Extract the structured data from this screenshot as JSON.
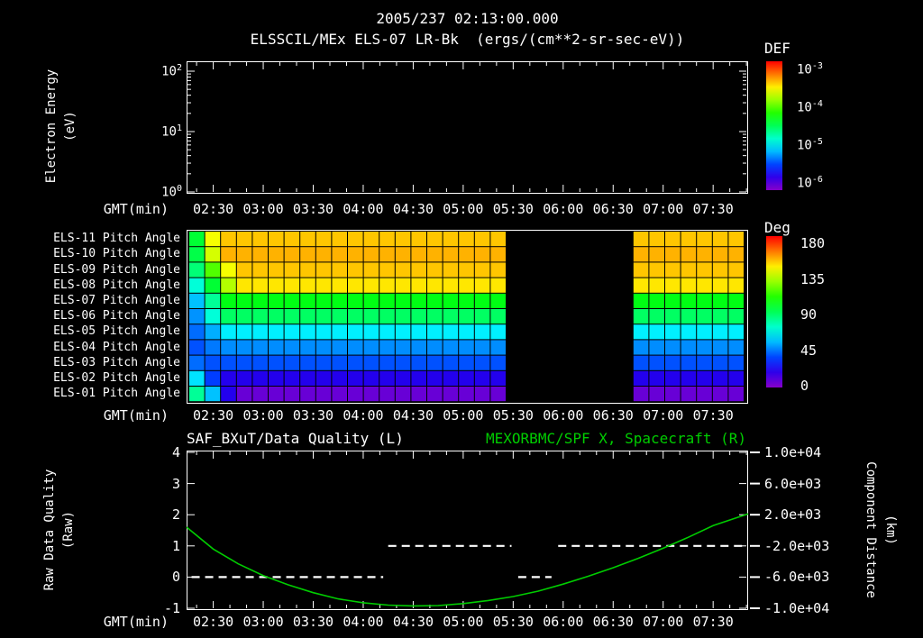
{
  "colors": {
    "background": "#000000",
    "text": "#ffffff",
    "green": "#00cd00"
  },
  "header": {
    "title": "2005/237 02:13:00.000",
    "subtitle": "ELSSCIL/MEx ELS-07 LR-Bk  (ergs/(cm**2-sr-sec-eV))"
  },
  "time_axis": {
    "label": "GMT(min)",
    "ticks": [
      "02:30",
      "03:00",
      "03:30",
      "04:00",
      "04:30",
      "05:00",
      "05:30",
      "06:00",
      "06:30",
      "07:00",
      "07:30"
    ],
    "start": "02:14",
    "end": "07:51"
  },
  "spectrogram_panel": {
    "ylabel": [
      "Electron Energy",
      "(eV)"
    ],
    "yticks": [
      {
        "m": "10",
        "e": "2"
      },
      {
        "m": "10",
        "e": "1"
      },
      {
        "m": "10",
        "e": "0"
      }
    ],
    "colorbar": {
      "title": "DEF",
      "ticks": [
        {
          "m": "10",
          "e": "-3"
        },
        {
          "m": "10",
          "e": "-4"
        },
        {
          "m": "10",
          "e": "-5"
        },
        {
          "m": "10",
          "e": "-6"
        }
      ]
    }
  },
  "pitch_panel": {
    "colorbar": {
      "title": "Deg",
      "ticks": [
        "180",
        "135",
        "90",
        "45",
        "0"
      ]
    }
  },
  "bottom_panel": {
    "title_left": "SAF_BXuT/Data Quality (L)",
    "title_right": "MEXORBMC/SPF X, Spacecraft (R)",
    "ylabel_left": [
      "Raw Data Quality",
      "(Raw)"
    ],
    "ylabel_right": [
      "Component Distance",
      "(km)"
    ],
    "yticks_left": [
      "4",
      "3",
      "2",
      "1",
      "0",
      "-1"
    ],
    "yticks_right": [
      "1.0e+04",
      "6.0e+03",
      "2.0e+03",
      "-2.0e+03",
      "-6.0e+03",
      "-1.0e+04"
    ]
  },
  "chart_data": [
    {
      "type": "heatmap",
      "name": "electron_energy_spectrogram",
      "title": "ELSSCIL/MEx ELS-07 LR-Bk",
      "units": "ergs/(cm**2-sr-sec-eV)",
      "x_range": [
        "02:14",
        "07:51"
      ],
      "y_axis": {
        "label": "Electron Energy (eV)",
        "scale": "log",
        "range": [
          1,
          200
        ]
      },
      "colorbar": {
        "label": "DEF",
        "range": [
          1e-06,
          0.001
        ]
      },
      "values": [],
      "note": "panel is blank (no flux data displayed)"
    },
    {
      "type": "heatmap",
      "name": "pitch_angles",
      "units": "deg",
      "scale_range": [
        0,
        180
      ],
      "x_range": [
        "02:14",
        "07:51"
      ],
      "n_cols": 35,
      "gap_cols": [
        20,
        27
      ],
      "gap_time": [
        "05:25",
        "06:38"
      ],
      "rows": [
        {
          "label": "ELS-11 Pitch Angle",
          "lead": [
            95,
            140
          ],
          "value": 150
        },
        {
          "label": "ELS-10 Pitch Angle",
          "lead": [
            92,
            135
          ],
          "value": 153
        },
        {
          "label": "ELS-09 Pitch Angle",
          "lead": [
            85,
            115,
            140
          ],
          "value": 150
        },
        {
          "label": "ELS-08 Pitch Angle",
          "lead": [
            70,
            95,
            130
          ],
          "value": 145
        },
        {
          "label": "ELS-07 Pitch Angle",
          "lead": [
            55,
            80
          ],
          "value": 100
        },
        {
          "label": "ELS-06 Pitch Angle",
          "lead": [
            48,
            70
          ],
          "value": 88
        },
        {
          "label": "ELS-05 Pitch Angle",
          "lead": [
            42,
            52
          ],
          "value": 62
        },
        {
          "label": "ELS-04 Pitch Angle",
          "lead": [
            38,
            44
          ],
          "value": 47
        },
        {
          "label": "ELS-03 Pitch Angle",
          "lead": [
            42
          ],
          "value": 38
        },
        {
          "label": "ELS-02 Pitch Angle",
          "lead": [
            60,
            35
          ],
          "value": 20
        },
        {
          "label": "ELS-01 Pitch Angle",
          "lead": [
            80,
            55,
            20
          ],
          "value": 7
        }
      ]
    },
    {
      "type": "line",
      "name": "quality_and_spacecraft_distance",
      "x_range": [
        "02:14",
        "07:51"
      ],
      "left_axis": {
        "label": "Raw Data Quality (Raw)",
        "range": [
          -1,
          4
        ]
      },
      "right_axis": {
        "label": "Component Distance (km)",
        "range": [
          -10000,
          10000
        ]
      },
      "series": [
        {
          "name": "SAF_BXuT/Data Quality (L)",
          "axis": "left",
          "style": "dashed",
          "color": "#ffffff",
          "segments": [
            {
              "start": "02:17",
              "end": "04:12",
              "value": 0
            },
            {
              "start": "04:15",
              "end": "05:29",
              "value": 1
            },
            {
              "start": "05:33",
              "end": "05:53",
              "value": 0
            },
            {
              "start": "05:57",
              "end": "07:50",
              "value": 1
            }
          ]
        },
        {
          "name": "MEXORBMC/SPF X, Spacecraft (R)",
          "axis": "right",
          "style": "solid",
          "color": "#00cd00",
          "points": [
            [
              "02:14",
              400
            ],
            [
              "02:30",
              -2400
            ],
            [
              "02:45",
              -4300
            ],
            [
              "03:00",
              -5800
            ],
            [
              "03:15",
              -7000
            ],
            [
              "03:30",
              -8000
            ],
            [
              "03:45",
              -8800
            ],
            [
              "04:00",
              -9300
            ],
            [
              "04:15",
              -9600
            ],
            [
              "04:30",
              -9700
            ],
            [
              "04:45",
              -9650
            ],
            [
              "05:00",
              -9400
            ],
            [
              "05:15",
              -9000
            ],
            [
              "05:30",
              -8500
            ],
            [
              "05:45",
              -7800
            ],
            [
              "06:00",
              -6900
            ],
            [
              "06:15",
              -5900
            ],
            [
              "06:30",
              -4800
            ],
            [
              "06:45",
              -3600
            ],
            [
              "07:00",
              -2300
            ],
            [
              "07:15",
              -900
            ],
            [
              "07:30",
              600
            ],
            [
              "07:51",
              2100
            ]
          ]
        }
      ]
    }
  ]
}
